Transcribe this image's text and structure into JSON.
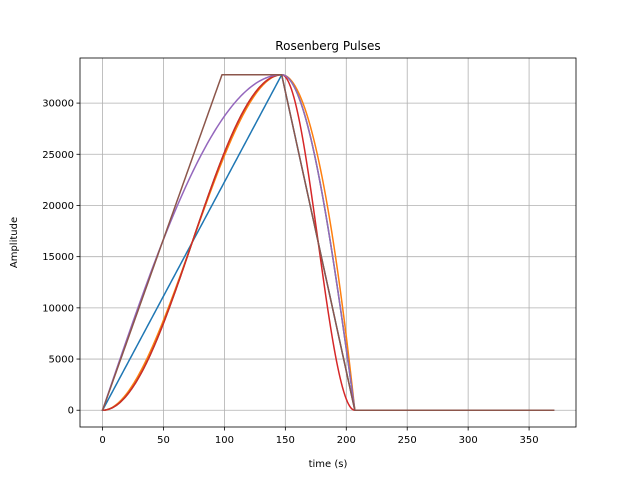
{
  "chart_data": {
    "type": "line",
    "title": "Rosenberg Pulses",
    "xlabel": "time (s)",
    "ylabel": "Amplitude",
    "xlim": [
      -18.5,
      388.5
    ],
    "ylim": [
      -1638,
      34405
    ],
    "x_ticks": [
      0,
      50,
      100,
      150,
      200,
      250,
      300,
      350
    ],
    "y_ticks": [
      0,
      5000,
      10000,
      15000,
      20000,
      25000,
      30000
    ],
    "grid": true,
    "legend": false,
    "series": [
      {
        "color": "#1f77b4",
        "shape": "linear",
        "rise_end": 147,
        "flat_end": 147,
        "fall_end": 207,
        "peak": 32767,
        "end": 370
      },
      {
        "color": "#ff7f0e",
        "shape": "poly",
        "rise_end": 147,
        "flat_end": 147,
        "fall_end": 207,
        "peak": 32767,
        "end": 370
      },
      {
        "color": "#2ca02c",
        "shape": "trig",
        "rise_end": 147,
        "flat_end": 147,
        "fall_end": 207,
        "peak": 32767,
        "end": 370
      },
      {
        "color": "#d62728",
        "shape": "trig-cos",
        "rise_end": 147,
        "flat_end": 147,
        "fall_end": 207,
        "peak": 32767,
        "end": 370
      },
      {
        "color": "#9467bd",
        "shape": "exp",
        "rise_end": 147,
        "flat_end": 147,
        "fall_end": 207,
        "peak": 32767,
        "end": 370
      },
      {
        "color": "#8c564b",
        "shape": "trapezoid",
        "rise_end": 98,
        "flat_end": 147,
        "fall_end": 207,
        "peak": 32767,
        "end": 370
      }
    ]
  }
}
